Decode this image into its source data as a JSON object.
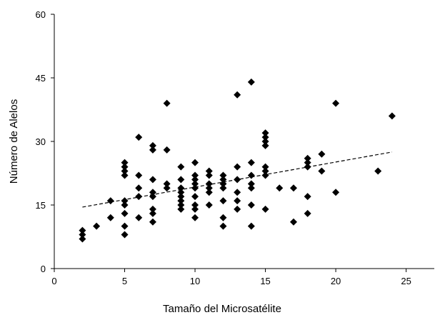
{
  "chart_data": {
    "type": "scatter",
    "xlabel": "Tamaño del Microsatélite",
    "ylabel": "Número de Alelos",
    "xlim": [
      0,
      27
    ],
    "ylim": [
      0,
      60
    ],
    "x_ticks": [
      "0",
      "5",
      "10",
      "15",
      "20",
      "25"
    ],
    "y_ticks": [
      "0",
      "15",
      "30",
      "45",
      "60"
    ],
    "grid": false,
    "legend": "none",
    "marker": "diamond",
    "marker_color": "#000000",
    "series": [
      {
        "points": [
          [
            2,
            7
          ],
          [
            2,
            8
          ],
          [
            2,
            9
          ],
          [
            3,
            10
          ],
          [
            4,
            12
          ],
          [
            4,
            16
          ],
          [
            5,
            8
          ],
          [
            5,
            10
          ],
          [
            5,
            13
          ],
          [
            5,
            15
          ],
          [
            5,
            16
          ],
          [
            5,
            22
          ],
          [
            5,
            23
          ],
          [
            5,
            24
          ],
          [
            5,
            25
          ],
          [
            6,
            12
          ],
          [
            6,
            17
          ],
          [
            6,
            19
          ],
          [
            6,
            22
          ],
          [
            6,
            31
          ],
          [
            7,
            11
          ],
          [
            7,
            13
          ],
          [
            7,
            14
          ],
          [
            7,
            17
          ],
          [
            7,
            18
          ],
          [
            7,
            21
          ],
          [
            7,
            28
          ],
          [
            7,
            29
          ],
          [
            8,
            19
          ],
          [
            8,
            20
          ],
          [
            8,
            28
          ],
          [
            8,
            39
          ],
          [
            9,
            14
          ],
          [
            9,
            15
          ],
          [
            9,
            16
          ],
          [
            9,
            17
          ],
          [
            9,
            18
          ],
          [
            9,
            19
          ],
          [
            9,
            21
          ],
          [
            9,
            24
          ],
          [
            10,
            12
          ],
          [
            10,
            14
          ],
          [
            10,
            15
          ],
          [
            10,
            17
          ],
          [
            10,
            19
          ],
          [
            10,
            20
          ],
          [
            10,
            21
          ],
          [
            10,
            22
          ],
          [
            10,
            25
          ],
          [
            11,
            15
          ],
          [
            11,
            18
          ],
          [
            11,
            19
          ],
          [
            11,
            20
          ],
          [
            11,
            22
          ],
          [
            11,
            23
          ],
          [
            12,
            10
          ],
          [
            12,
            12
          ],
          [
            12,
            16
          ],
          [
            12,
            19
          ],
          [
            12,
            20
          ],
          [
            12,
            21
          ],
          [
            12,
            22
          ],
          [
            13,
            14
          ],
          [
            13,
            16
          ],
          [
            13,
            18
          ],
          [
            13,
            21
          ],
          [
            13,
            24
          ],
          [
            13,
            41
          ],
          [
            14,
            10
          ],
          [
            14,
            15
          ],
          [
            14,
            19
          ],
          [
            14,
            20
          ],
          [
            14,
            22
          ],
          [
            14,
            25
          ],
          [
            14,
            44
          ],
          [
            15,
            14
          ],
          [
            15,
            22
          ],
          [
            15,
            23
          ],
          [
            15,
            24
          ],
          [
            15,
            29
          ],
          [
            15,
            30
          ],
          [
            15,
            31
          ],
          [
            15,
            32
          ],
          [
            16,
            19
          ],
          [
            17,
            11
          ],
          [
            17,
            19
          ],
          [
            18,
            13
          ],
          [
            18,
            17
          ],
          [
            18,
            24
          ],
          [
            18,
            25
          ],
          [
            18,
            26
          ],
          [
            19,
            23
          ],
          [
            19,
            27
          ],
          [
            20,
            18
          ],
          [
            20,
            39
          ],
          [
            23,
            23
          ],
          [
            24,
            36
          ]
        ]
      }
    ],
    "trendline": {
      "style": "dashed",
      "from": [
        2,
        14.5
      ],
      "to": [
        24,
        27.5
      ]
    }
  }
}
